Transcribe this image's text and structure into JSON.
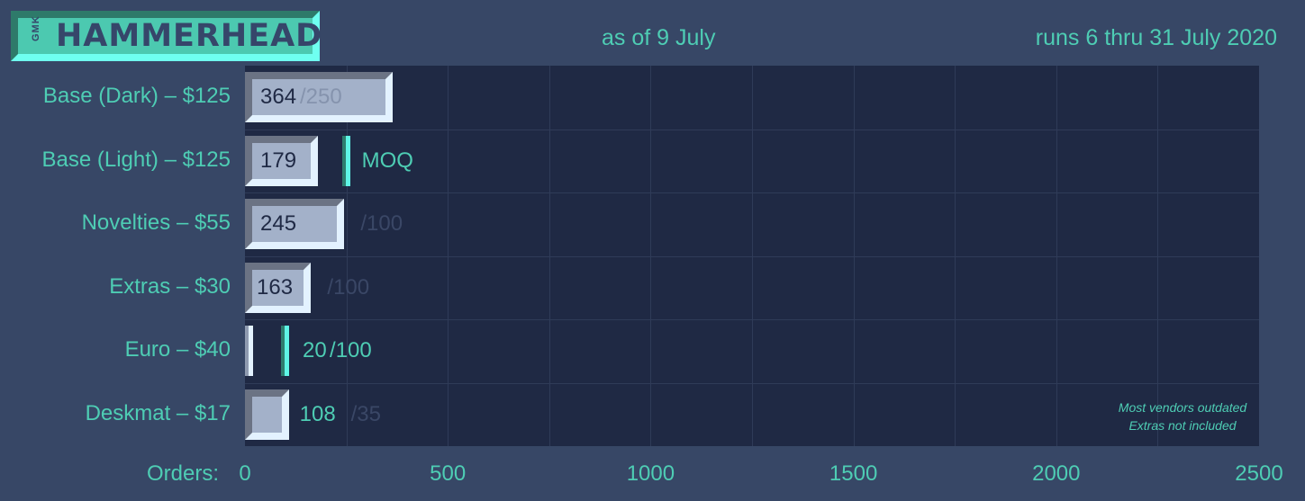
{
  "header": {
    "logo_prefix": "GMK",
    "logo_text": "HAMMERHEAD",
    "as_of": "as of 9 July",
    "runs": "runs 6 thru 31 July 2020"
  },
  "colors": {
    "background": "#374766",
    "plot": "#1f2944",
    "accent": "#4ecdb4",
    "bar_face": "#a3b1c9"
  },
  "chart_data": {
    "type": "bar",
    "orientation": "horizontal",
    "xlabel": "Orders:",
    "xlim": [
      0,
      2500
    ],
    "xticks": [
      "0",
      "500",
      "1000",
      "1500",
      "2000",
      "2500"
    ],
    "grid": true,
    "categories": [
      "Base (Dark) – $125",
      "Base (Light) – $125",
      "Novelties – $55",
      "Extras – $30",
      "Euro – $40",
      "Deskmat – $17"
    ],
    "rows": [
      {
        "category": "Base (Dark) – $125",
        "value": 364,
        "moq": 250,
        "value_text": "364",
        "moq_text": "/250",
        "marker": false
      },
      {
        "category": "Base (Light) – $125",
        "value": 179,
        "moq": 250,
        "value_text": "179",
        "moq_text": "MOQ",
        "marker": true
      },
      {
        "category": "Novelties – $55",
        "value": 245,
        "moq": 100,
        "value_text": "245",
        "moq_text": "/100",
        "marker": false
      },
      {
        "category": "Extras – $30",
        "value": 163,
        "moq": 100,
        "value_text": "163",
        "moq_text": "/100",
        "marker": false
      },
      {
        "category": "Euro – $40",
        "value": 20,
        "moq": 100,
        "value_text": "20",
        "moq_text": "/100",
        "marker": true
      },
      {
        "category": "Deskmat – $17",
        "value": 108,
        "moq": 35,
        "value_text": "108",
        "moq_text": "/35",
        "marker": false
      }
    ],
    "annotations": [
      "Most vendors outdated",
      "Extras not included"
    ]
  }
}
